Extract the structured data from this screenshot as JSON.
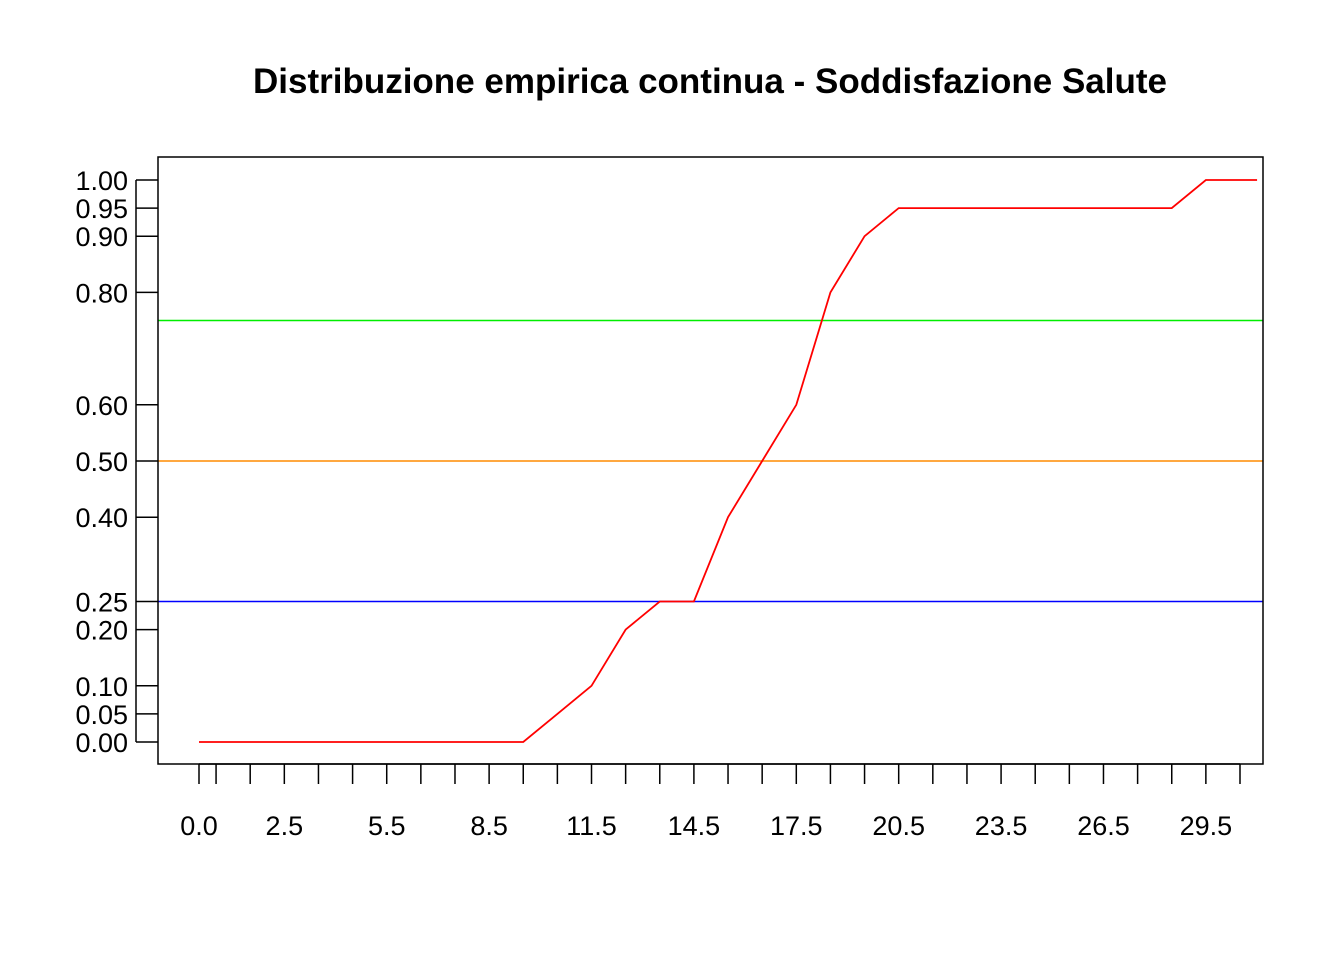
{
  "chart_data": {
    "type": "line",
    "title": "Distribuzione empirica continua - Soddisfazione Salute",
    "xlabel": "",
    "ylabel": "",
    "xlim": [
      0,
      31
    ],
    "ylim": [
      0,
      1
    ],
    "x_ticks": [
      0,
      0.5,
      1.5,
      2.5,
      3.5,
      4.5,
      5.5,
      6.5,
      7.5,
      8.5,
      9.5,
      10.5,
      11.5,
      12.5,
      13.5,
      14.5,
      15.5,
      16.5,
      17.5,
      18.5,
      19.5,
      20.5,
      21.5,
      22.5,
      23.5,
      24.5,
      25.5,
      26.5,
      27.5,
      28.5,
      29.5,
      30.5
    ],
    "x_tick_labels": [
      {
        "x": 0,
        "label": "0.0"
      },
      {
        "x": 2.5,
        "label": "2.5"
      },
      {
        "x": 5.5,
        "label": "5.5"
      },
      {
        "x": 8.5,
        "label": "8.5"
      },
      {
        "x": 11.5,
        "label": "11.5"
      },
      {
        "x": 14.5,
        "label": "14.5"
      },
      {
        "x": 17.5,
        "label": "17.5"
      },
      {
        "x": 20.5,
        "label": "20.5"
      },
      {
        "x": 23.5,
        "label": "23.5"
      },
      {
        "x": 26.5,
        "label": "26.5"
      },
      {
        "x": 29.5,
        "label": "29.5"
      }
    ],
    "y_ticks": [
      {
        "y": 0,
        "label": "0.00"
      },
      {
        "y": 0.05,
        "label": "0.05"
      },
      {
        "y": 0.1,
        "label": "0.10"
      },
      {
        "y": 0.2,
        "label": "0.20"
      },
      {
        "y": 0.25,
        "label": "0.25"
      },
      {
        "y": 0.4,
        "label": "0.40"
      },
      {
        "y": 0.5,
        "label": "0.50"
      },
      {
        "y": 0.6,
        "label": "0.60"
      },
      {
        "y": 0.8,
        "label": "0.80"
      },
      {
        "y": 0.9,
        "label": "0.90"
      },
      {
        "y": 0.95,
        "label": "0.95"
      },
      {
        "y": 1,
        "label": "1.00"
      }
    ],
    "series": [
      {
        "color": "#ff0000",
        "x": [
          0,
          9.5,
          10.5,
          11.5,
          12.5,
          13.5,
          14.5,
          15.5,
          16.5,
          17.5,
          18.5,
          19.5,
          20.5,
          28.5,
          29.5,
          31
        ],
        "y": [
          0,
          0,
          0.05,
          0.1,
          0.2,
          0.25,
          0.25,
          0.4,
          0.5,
          0.6,
          0.8,
          0.9,
          0.95,
          0.95,
          1,
          1
        ]
      }
    ],
    "reference_lines": [
      {
        "y": 0.25,
        "color": "#0000ff"
      },
      {
        "y": 0.5,
        "color": "#ff8c00"
      },
      {
        "y": 0.75,
        "color": "#00ee00"
      }
    ],
    "grid": false,
    "legend": "none"
  }
}
